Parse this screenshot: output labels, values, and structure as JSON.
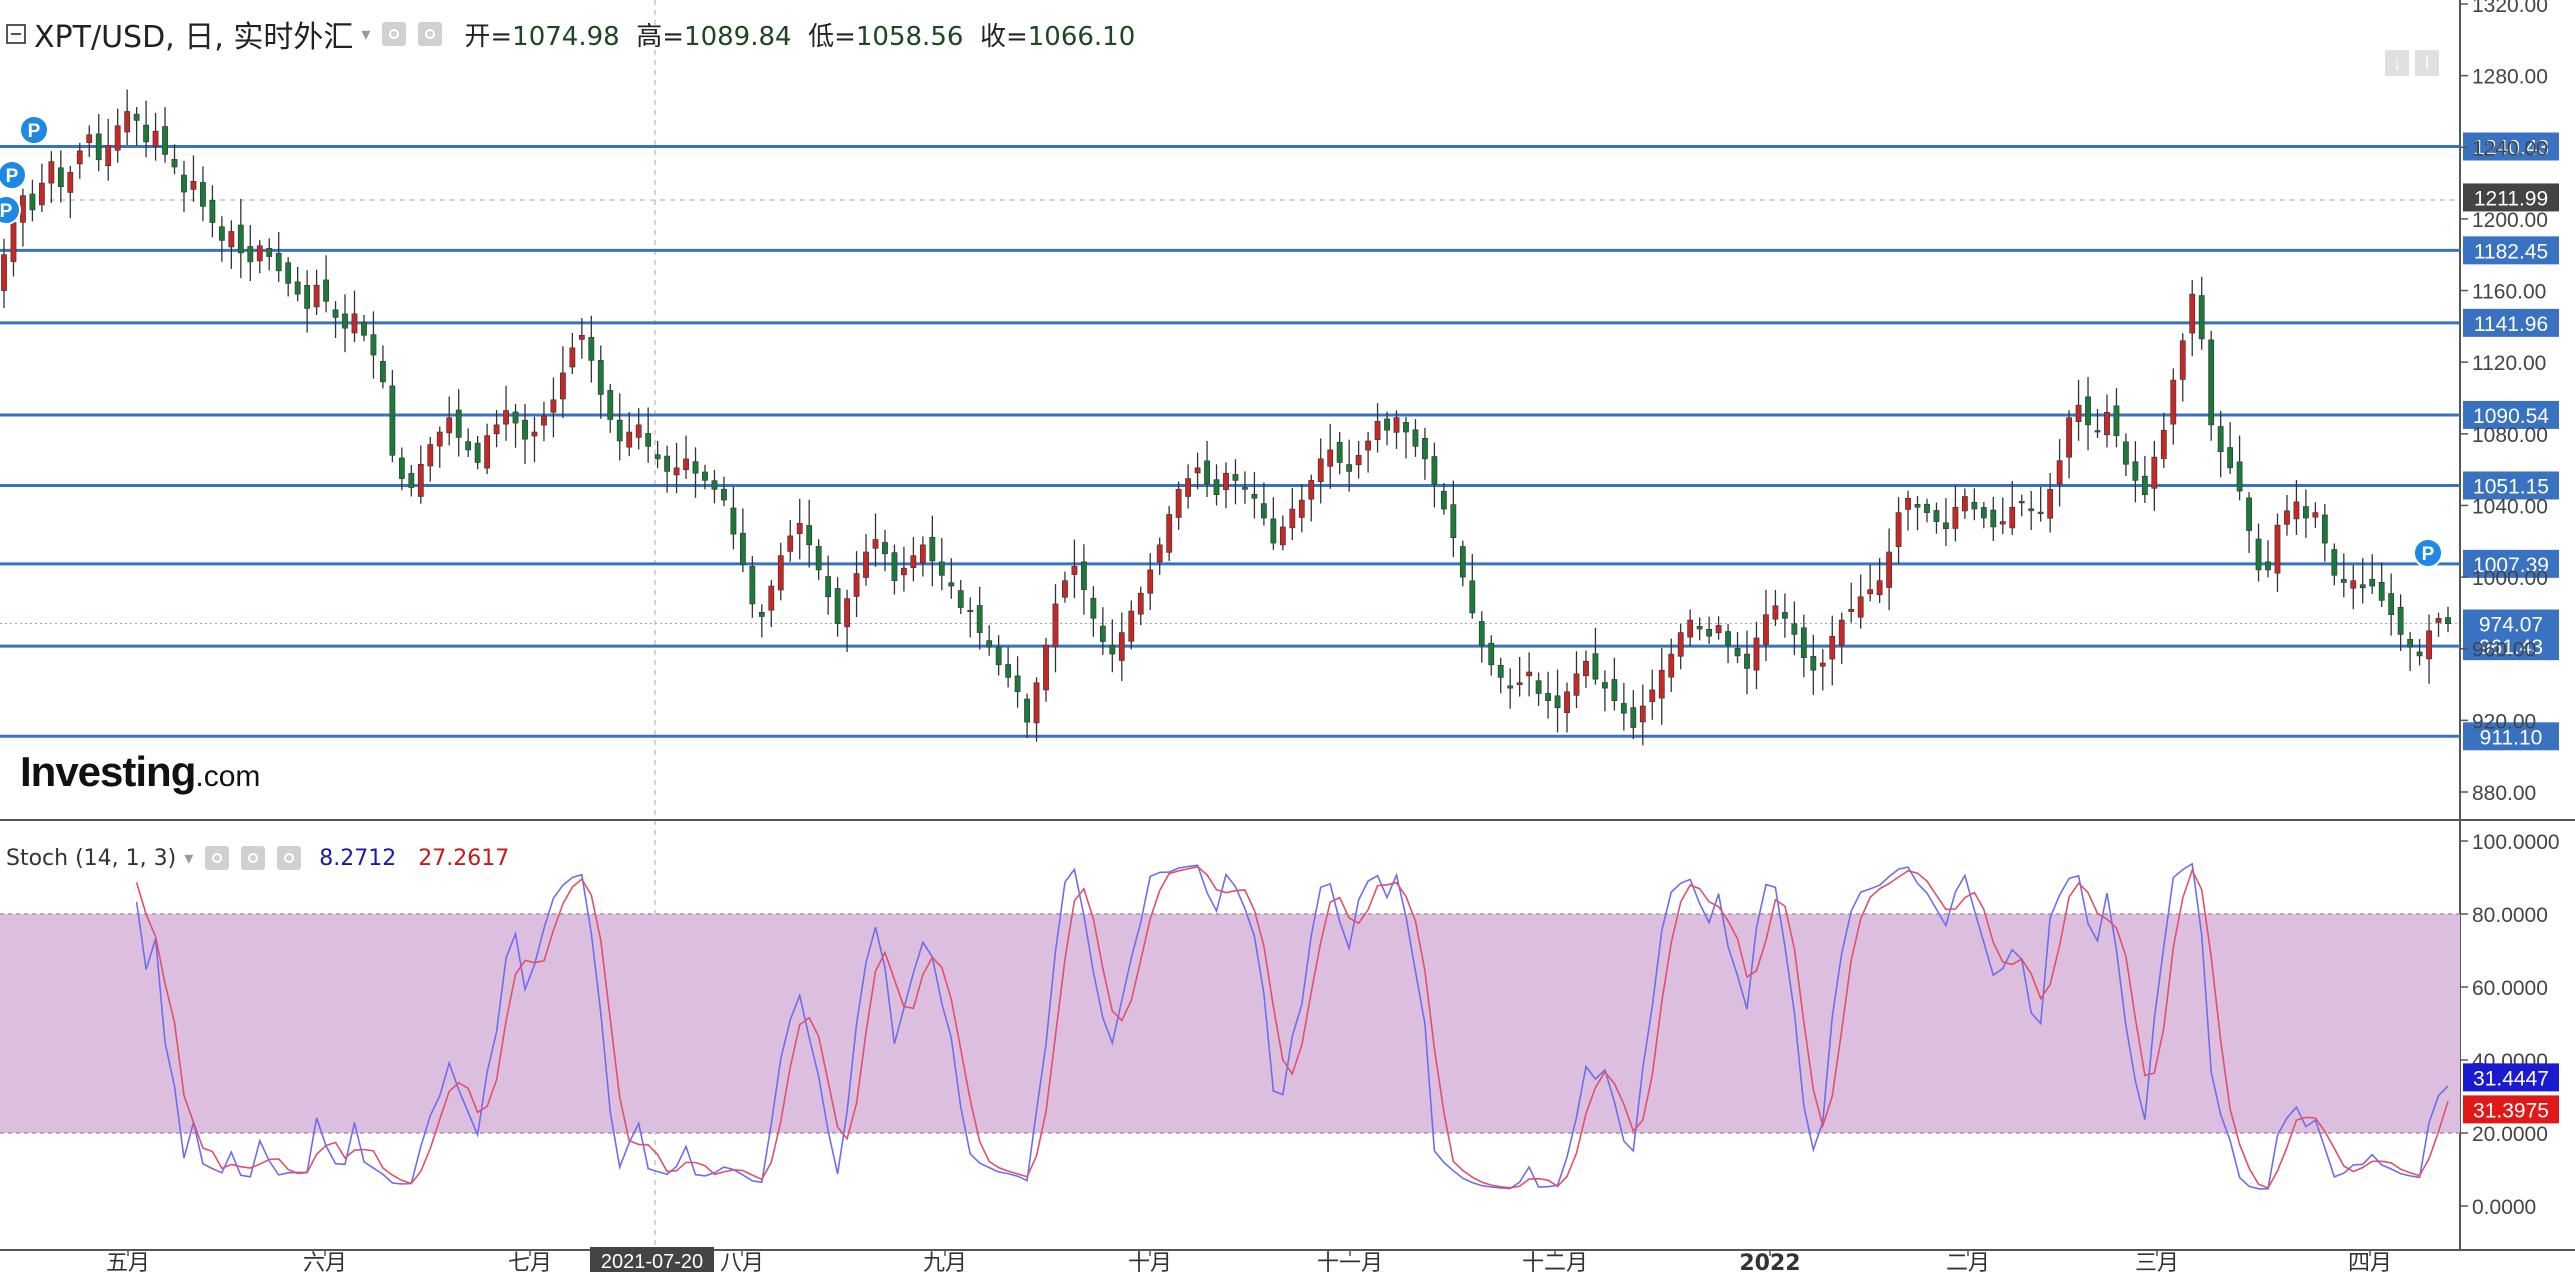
{
  "header": {
    "symbol": "XPT/USD, 日, 实时外汇",
    "open_label": "开=",
    "open_value": "1074.98",
    "high_label": "高=",
    "high_value": "1089.84",
    "low_label": "低=",
    "low_value": "1058.56",
    "close_label": "收=",
    "close_value": "1066.10"
  },
  "stoch_header": {
    "label": "Stoch (14, 1, 3)",
    "k_value": "8.2712",
    "d_value": "27.2617"
  },
  "logo": {
    "bold": "Investing",
    "suffix": ".com"
  },
  "colors": {
    "up": "#c62828",
    "down": "#1b7a3a",
    "hline": "#3a72c2",
    "band_fill": "#dcbfdf",
    "k_line": "#6d6df0",
    "d_line": "#e0506a"
  },
  "chart_data": [
    {
      "type": "candlestick",
      "title": "XPT/USD, 日, 实时外汇",
      "y_axis_ticks": [
        "1320.00",
        "1280.00",
        "1240.00",
        "1200.00",
        "1160.00",
        "1120.00",
        "1080.00",
        "1040.00",
        "1000.00",
        "960.00",
        "920.00",
        "880.00"
      ],
      "ylim": [
        870,
        1322
      ],
      "x_axis_ticks": [
        "五月",
        "六月",
        "七月",
        "八月",
        "九月",
        "十月",
        "十一月",
        "十二月",
        "2022",
        "二月",
        "三月",
        "四月"
      ],
      "crosshair_date": "2021-07-20",
      "crosshair_price": "1211.99",
      "last_price": "974.07",
      "horizontal_lines": [
        "1240.43",
        "1182.45",
        "1141.96",
        "1090.54",
        "1051.15",
        "1007.39",
        "961.43",
        "911.10"
      ],
      "markers": [
        "P",
        "P",
        "P",
        "P"
      ],
      "close_series": [
        1180,
        1198,
        1213,
        1205,
        1220,
        1232,
        1218,
        1226,
        1238,
        1247,
        1233,
        1241,
        1252,
        1260,
        1255,
        1243,
        1249,
        1236,
        1229,
        1215,
        1221,
        1207,
        1198,
        1188,
        1193,
        1181,
        1176,
        1185,
        1179,
        1171,
        1164,
        1158,
        1150,
        1163,
        1154,
        1145,
        1139,
        1147,
        1135,
        1124,
        1109,
        1068,
        1055,
        1050,
        1063,
        1074,
        1081,
        1089,
        1078,
        1071,
        1064,
        1079,
        1085,
        1093,
        1086,
        1077,
        1081,
        1090,
        1099,
        1114,
        1128,
        1135,
        1121,
        1102,
        1088,
        1076,
        1081,
        1085,
        1073,
        1066,
        1059,
        1061,
        1066,
        1058,
        1054,
        1049,
        1043,
        1024,
        1007,
        985,
        978,
        995,
        1012,
        1023,
        1030,
        1018,
        1004,
        989,
        974,
        988,
        1002,
        1014,
        1021,
        1013,
        998,
        1005,
        1012,
        1018,
        1009,
        1001,
        995,
        983,
        981,
        969,
        961,
        951,
        944,
        936,
        919,
        941,
        962,
        985,
        998,
        1006,
        993,
        977,
        964,
        957,
        969,
        981,
        991,
        1004,
        1018,
        1035,
        1049,
        1055,
        1061,
        1052,
        1046,
        1058,
        1054,
        1049,
        1044,
        1033,
        1019,
        1028,
        1038,
        1043,
        1054,
        1066,
        1071,
        1064,
        1059,
        1068,
        1076,
        1087,
        1082,
        1089,
        1081,
        1073,
        1066,
        1052,
        1038,
        1022,
        1000,
        980,
        962,
        951,
        944,
        938,
        941,
        947,
        935,
        931,
        927,
        936,
        946,
        953,
        943,
        938,
        931,
        924,
        916,
        928,
        937,
        948,
        957,
        969,
        976,
        971,
        967,
        973,
        962,
        956,
        949,
        966,
        979,
        984,
        977,
        968,
        955,
        948,
        952,
        967,
        976,
        982,
        989,
        993,
        998,
        1014,
        1036,
        1044,
        1039,
        1036,
        1031,
        1027,
        1039,
        1045,
        1038,
        1033,
        1028,
        1031,
        1039,
        1042,
        1037,
        1036,
        1049,
        1065,
        1089,
        1096,
        1085,
        1081,
        1092,
        1079,
        1063,
        1054,
        1046,
        1067,
        1082,
        1110,
        1132,
        1158,
        1133,
        1085,
        1070,
        1061,
        1048,
        1026,
        1004,
        1004,
        1029,
        1037,
        1042,
        1033,
        1036,
        1019,
        1001,
        997,
        998,
        994,
        995,
        987,
        979,
        968,
        961,
        956,
        970,
        977,
        974
      ]
    },
    {
      "type": "line",
      "title": "Stoch (14, 1, 3)",
      "y_axis_ticks": [
        "100.0000",
        "80.0000",
        "60.0000",
        "40.0000",
        "20.0000",
        "0.0000"
      ],
      "ylim": [
        -4,
        103
      ],
      "band": [
        20,
        80
      ],
      "current_k": "31.4447",
      "current_d": "31.3975"
    }
  ]
}
